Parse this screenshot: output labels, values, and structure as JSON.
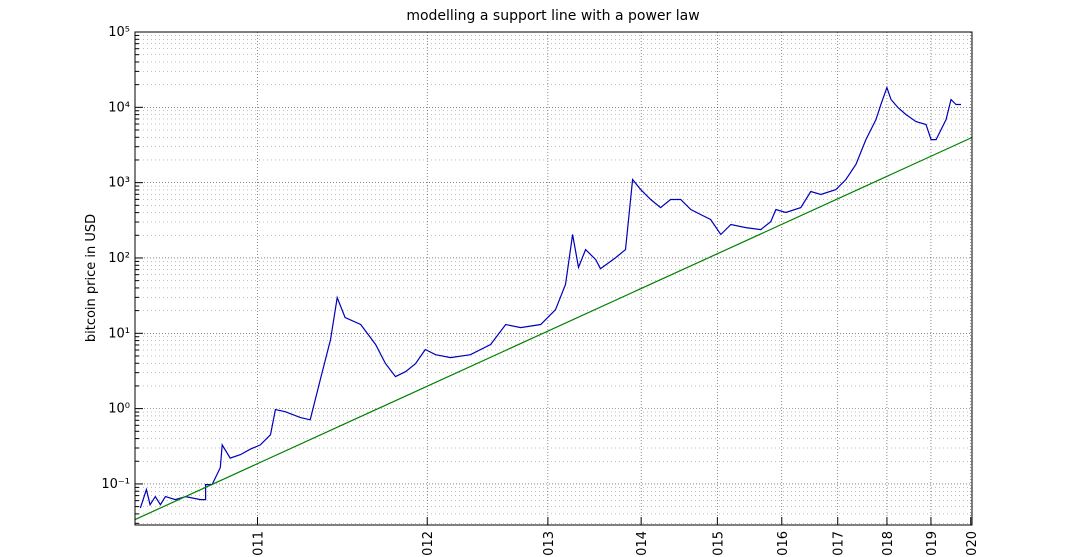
{
  "chart_data": {
    "type": "line",
    "title": "modelling a support line with a power law",
    "y_label": "bitcoin price in USD",
    "xscale": "log",
    "yscale": "log",
    "grid": true,
    "xlim": [
      543,
      4027
    ],
    "ylim": [
      0.0285,
      100000
    ],
    "xticks": [
      {
        "value": 728,
        "label": "011"
      },
      {
        "value": 1093,
        "label": "012"
      },
      {
        "value": 1459,
        "label": "013"
      },
      {
        "value": 1824,
        "label": "014"
      },
      {
        "value": 2189,
        "label": "015"
      },
      {
        "value": 2554,
        "label": "016"
      },
      {
        "value": 2920,
        "label": "017"
      },
      {
        "value": 3285,
        "label": "018"
      },
      {
        "value": 3650,
        "label": "019"
      },
      {
        "value": 4015,
        "label": "020"
      }
    ],
    "yticks": [
      {
        "value": 0.1,
        "label": "10⁻¹"
      },
      {
        "value": 1,
        "label": "10⁰"
      },
      {
        "value": 10,
        "label": "10¹"
      },
      {
        "value": 100,
        "label": "10²"
      },
      {
        "value": 1000,
        "label": "10³"
      },
      {
        "value": 10000,
        "label": "10⁴"
      },
      {
        "value": 100000,
        "label": "10⁵"
      }
    ],
    "yminorticks": [
      0.03,
      0.04,
      0.05,
      0.06,
      0.07,
      0.08,
      0.09,
      0.2,
      0.3,
      0.4,
      0.5,
      0.6,
      0.7,
      0.8,
      0.9,
      2,
      3,
      4,
      5,
      6,
      7,
      8,
      9,
      20,
      30,
      40,
      50,
      60,
      70,
      80,
      90,
      200,
      300,
      400,
      500,
      600,
      700,
      800,
      900,
      2000,
      3000,
      4000,
      5000,
      6000,
      7000,
      8000,
      9000,
      20000,
      30000,
      40000,
      50000,
      60000,
      70000,
      80000,
      90000
    ],
    "series": [
      {
        "color": "#0000bb",
        "x": [
          550,
          558,
          563,
          570,
          577,
          584,
          598,
          613,
          635,
          643,
          643,
          653,
          666,
          669,
          682,
          699,
          716,
          733,
          751,
          760,
          778,
          807,
          826,
          846,
          867,
          881,
          898,
          932,
          966,
          989,
          1013,
          1038,
          1063,
          1088,
          1115,
          1156,
          1212,
          1272,
          1319,
          1367,
          1434,
          1486,
          1522,
          1548,
          1570,
          1597,
          1636,
          1655,
          1716,
          1757,
          1787,
          1822,
          1866,
          1911,
          1957,
          2005,
          2054,
          2104,
          2154,
          2207,
          2261,
          2343,
          2429,
          2488,
          2518,
          2579,
          2673,
          2738,
          2804,
          2907,
          2978,
          3050,
          3124,
          3200,
          3238,
          3285,
          3317,
          3373,
          3438,
          3522,
          3607,
          3651,
          3695,
          3785,
          3830,
          3876,
          3922
        ],
        "values": [
          0.048,
          0.084,
          0.053,
          0.068,
          0.053,
          0.068,
          0.062,
          0.068,
          0.062,
          0.062,
          0.098,
          0.098,
          0.165,
          0.33,
          0.22,
          0.245,
          0.29,
          0.33,
          0.45,
          0.97,
          0.91,
          0.76,
          0.71,
          2.4,
          8.2,
          29.8,
          16.2,
          13.1,
          7.1,
          3.96,
          2.66,
          3.1,
          3.96,
          6.1,
          5.2,
          4.75,
          5.2,
          7.1,
          13.1,
          11.9,
          13.1,
          20.6,
          44.4,
          205,
          75,
          129,
          95,
          72,
          101,
          129,
          1100,
          809,
          597,
          467,
          597,
          597,
          440,
          377,
          324,
          205,
          278,
          253,
          238,
          304,
          440,
          401,
          467,
          762,
          695,
          809,
          1100,
          1740,
          3730,
          6890,
          10900,
          18300,
          12700,
          9930,
          8020,
          6470,
          5910,
          3730,
          3730,
          6890,
          12700,
          10900,
          10900
        ]
      },
      {
        "color": "#008000",
        "x": [
          543,
          4027
        ],
        "values": [
          0.0336,
          3970
        ]
      }
    ]
  }
}
